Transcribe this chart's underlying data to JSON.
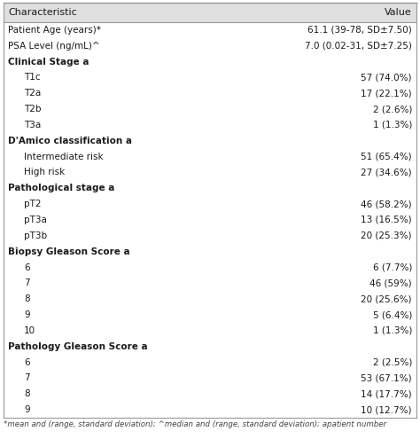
{
  "header": [
    "Characteristic",
    "Value"
  ],
  "rows": [
    {
      "label": "Patient Age (years)*",
      "value": "61.1 (39-78, SD±7.50)",
      "indent": 0,
      "bold": false
    },
    {
      "label": "PSA Level (ng/mL)^",
      "value": "7.0 (0.02-31, SD±7.25)",
      "indent": 0,
      "bold": false
    },
    {
      "label": "Clinical Stage a",
      "value": "",
      "indent": 0,
      "bold": true
    },
    {
      "label": "T1c",
      "value": "57 (74.0%)",
      "indent": 1,
      "bold": false
    },
    {
      "label": "T2a",
      "value": "17 (22.1%)",
      "indent": 1,
      "bold": false
    },
    {
      "label": "T2b",
      "value": "2 (2.6%)",
      "indent": 1,
      "bold": false
    },
    {
      "label": "T3a",
      "value": "1 (1.3%)",
      "indent": 1,
      "bold": false
    },
    {
      "label": "D'Amico classification a",
      "value": "",
      "indent": 0,
      "bold": true
    },
    {
      "label": "Intermediate risk",
      "value": "51 (65.4%)",
      "indent": 1,
      "bold": false
    },
    {
      "label": "High risk",
      "value": "27 (34.6%)",
      "indent": 1,
      "bold": false
    },
    {
      "label": "Pathological stage a",
      "value": "",
      "indent": 0,
      "bold": true
    },
    {
      "label": "pT2",
      "value": "46 (58.2%)",
      "indent": 1,
      "bold": false
    },
    {
      "label": "pT3a",
      "value": "13 (16.5%)",
      "indent": 1,
      "bold": false
    },
    {
      "label": "pT3b",
      "value": "20 (25.3%)",
      "indent": 1,
      "bold": false
    },
    {
      "label": "Biopsy Gleason Score a",
      "value": "",
      "indent": 0,
      "bold": true
    },
    {
      "label": "6",
      "value": "6 (7.7%)",
      "indent": 1,
      "bold": false
    },
    {
      "label": "7",
      "value": "46 (59%)",
      "indent": 1,
      "bold": false
    },
    {
      "label": "8",
      "value": "20 (25.6%)",
      "indent": 1,
      "bold": false
    },
    {
      "label": "9",
      "value": "5 (6.4%)",
      "indent": 1,
      "bold": false
    },
    {
      "label": "10",
      "value": "1 (1.3%)",
      "indent": 1,
      "bold": false
    },
    {
      "label": "Pathology Gleason Score a",
      "value": "",
      "indent": 0,
      "bold": true
    },
    {
      "label": "6",
      "value": "2 (2.5%)",
      "indent": 1,
      "bold": false
    },
    {
      "label": "7",
      "value": "53 (67.1%)",
      "indent": 1,
      "bold": false
    },
    {
      "label": "8",
      "value": "14 (17.7%)",
      "indent": 1,
      "bold": false
    },
    {
      "label": "9",
      "value": "10 (12.7%)",
      "indent": 1,
      "bold": false
    }
  ],
  "footnote": "*mean and (range, standard deviation); ^median and (range, standard deviation); apatient number",
  "header_bg": "#e0e0e0",
  "row_bg": "#ffffff",
  "border_color": "#999999",
  "text_color": "#1a1a1a",
  "header_font_size": 8.0,
  "body_font_size": 7.5,
  "footnote_font_size": 6.2,
  "fig_width": 4.74,
  "fig_height": 4.95,
  "dpi": 100
}
